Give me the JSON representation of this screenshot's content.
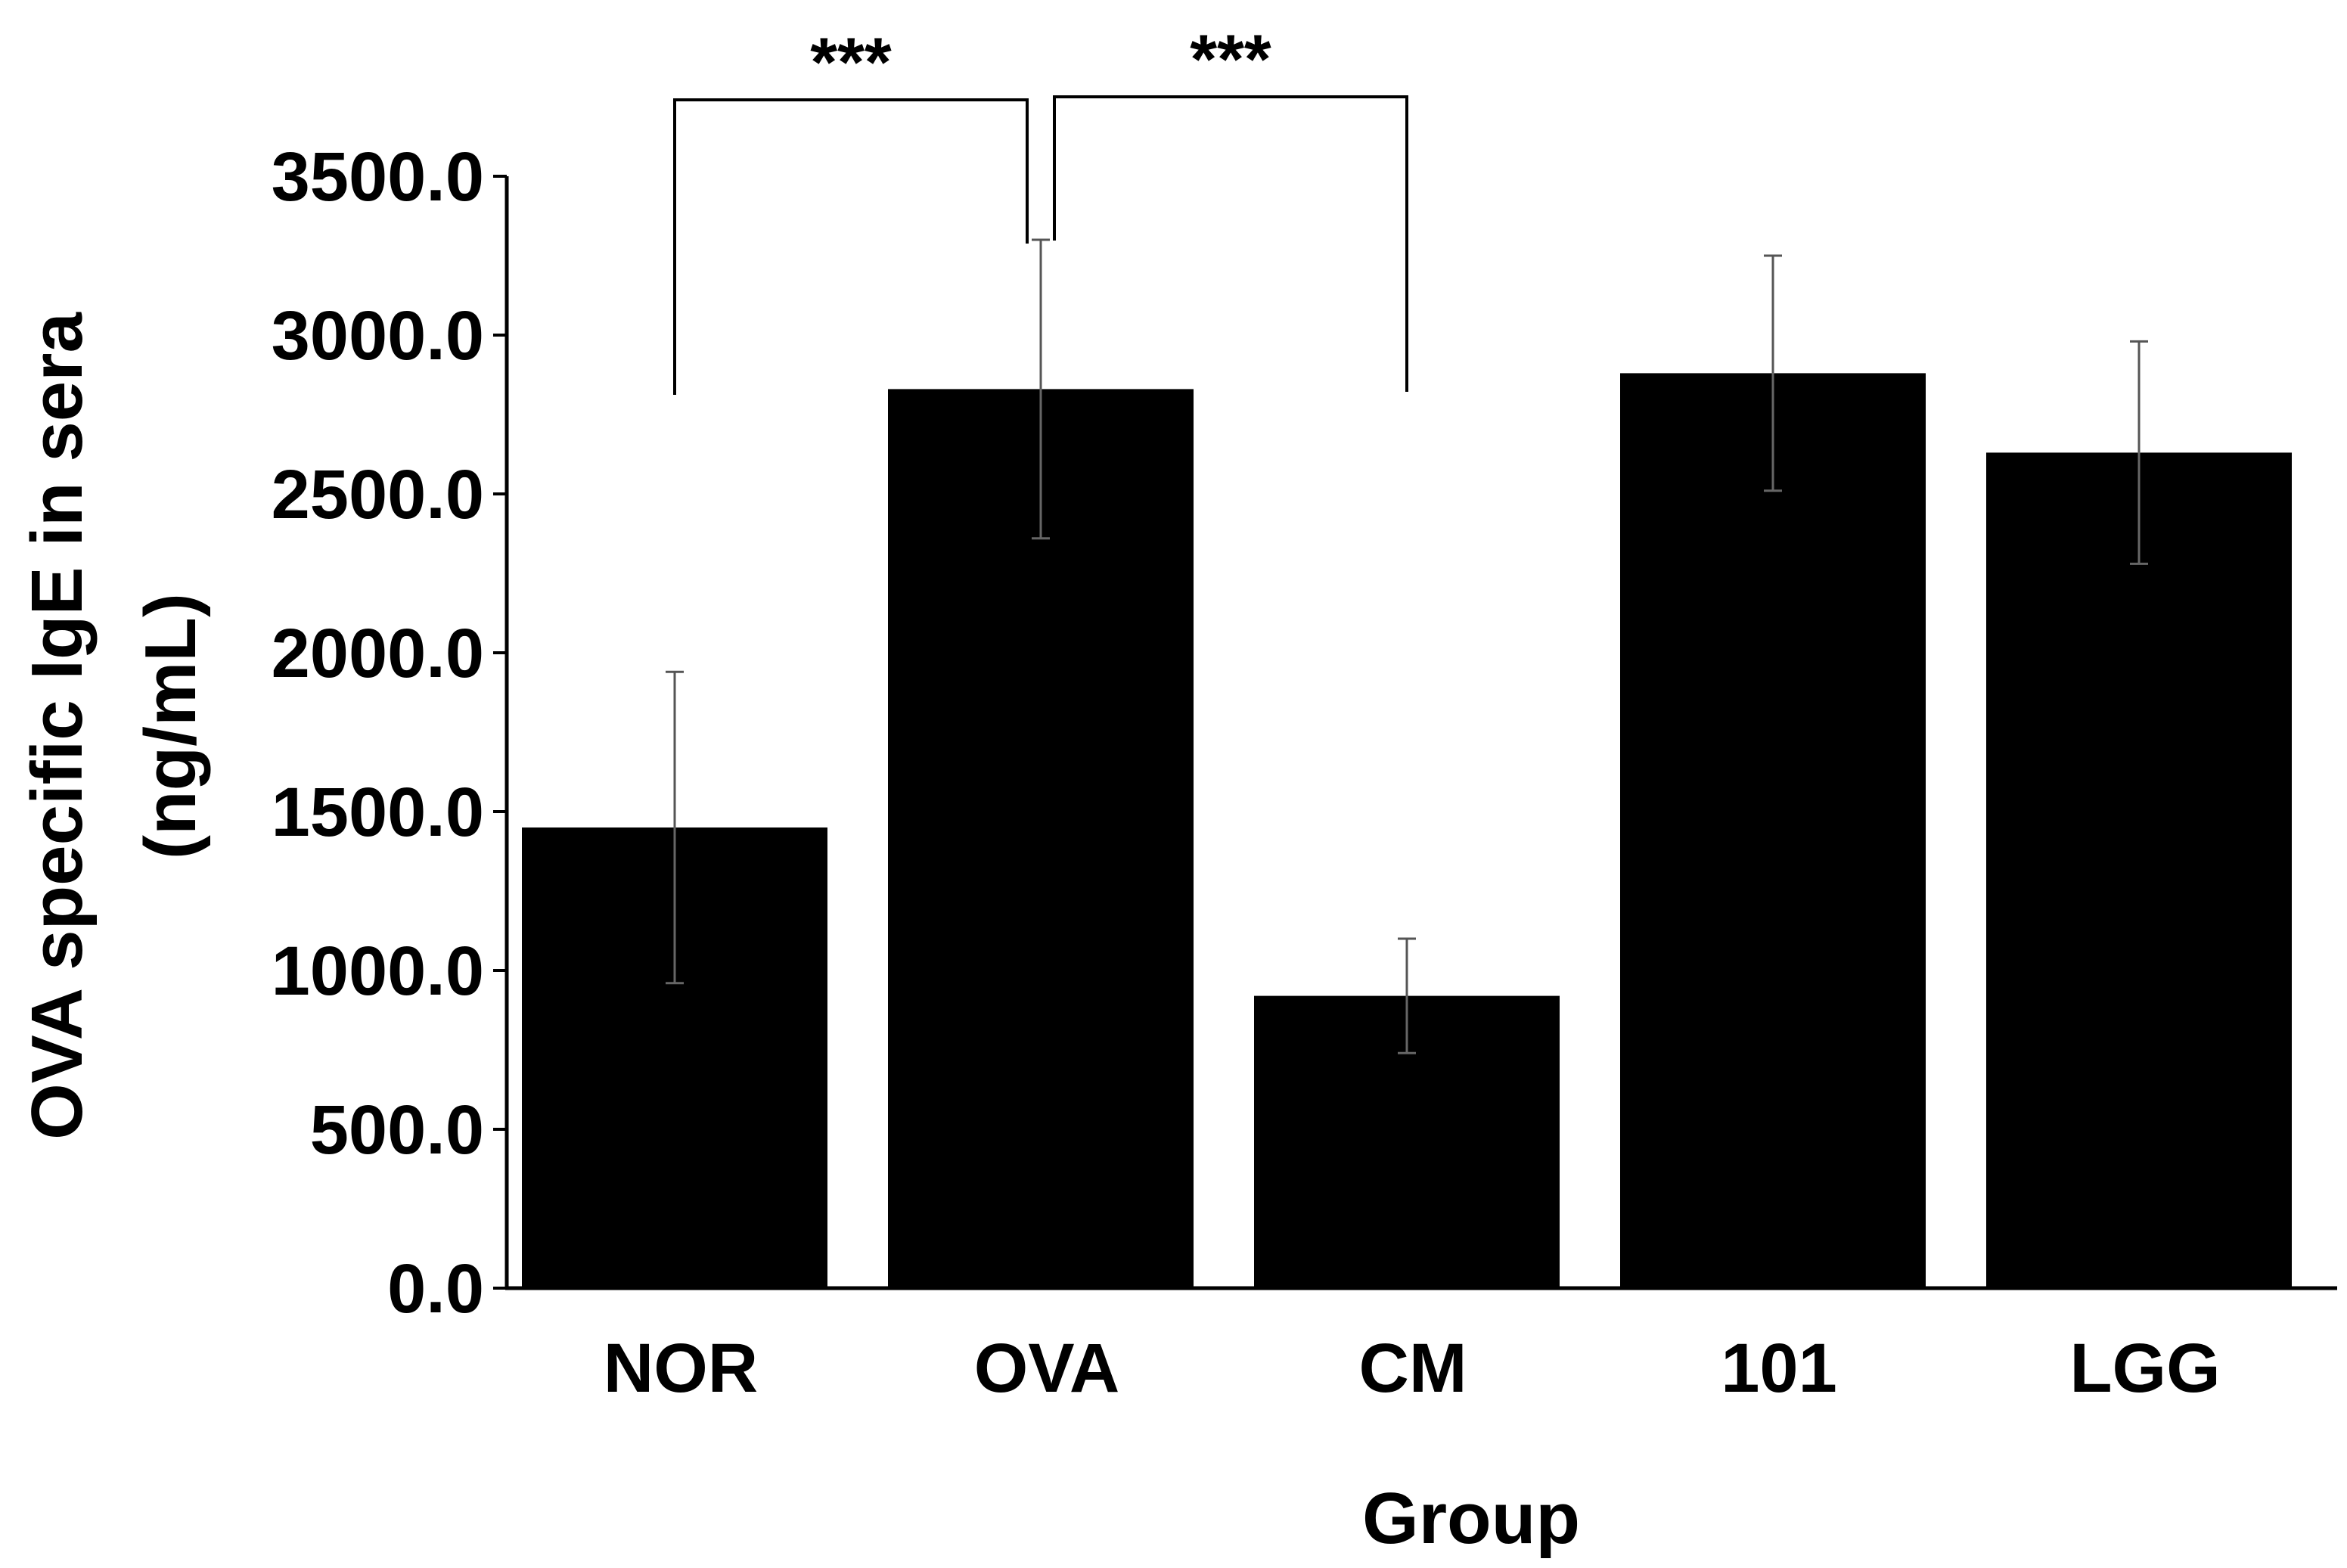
{
  "chart_data": {
    "type": "bar",
    "categories": [
      "NOR",
      "OVA",
      "CM",
      "101",
      "LGG"
    ],
    "values": [
      1450,
      2830,
      920,
      2880,
      2630
    ],
    "errors": [
      490,
      470,
      180,
      370,
      350
    ],
    "ylim": [
      0,
      3500
    ],
    "yticks": [
      "0.0",
      "500.0",
      "1000.0",
      "1500.0",
      "2000.0",
      "2500.0",
      "3000.0",
      "3500.0"
    ],
    "xlabel": "Group",
    "ylabel_line1": "OVA specific IgE in sera",
    "ylabel_line2": "(ng/mL)",
    "bar_color": "#000000",
    "significance": [
      {
        "from": "NOR",
        "to": "OVA",
        "label": "***"
      },
      {
        "from": "OVA",
        "to": "CM",
        "label": "***"
      }
    ]
  }
}
